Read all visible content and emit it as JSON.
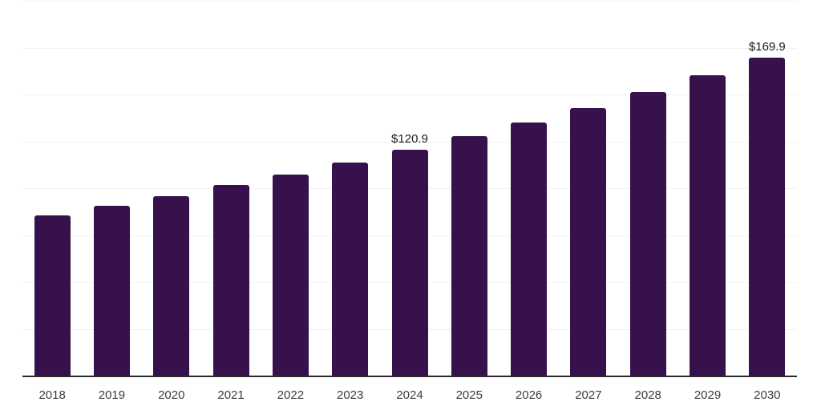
{
  "chart_data": {
    "type": "bar",
    "title": "",
    "xlabel": "",
    "ylabel": "",
    "categories": [
      "2018",
      "2019",
      "2020",
      "2021",
      "2022",
      "2023",
      "2024",
      "2025",
      "2026",
      "2027",
      "2028",
      "2029",
      "2030"
    ],
    "values": [
      86.0,
      91.0,
      96.3,
      102.0,
      107.9,
      114.2,
      120.9,
      128.0,
      135.4,
      143.3,
      151.7,
      160.5,
      169.9
    ],
    "data_labels": [
      "",
      "",
      "",
      "",
      "",
      "",
      "$120.9",
      "",
      "",
      "",
      "",
      "",
      "$169.9"
    ],
    "ylim": [
      0,
      200
    ],
    "gridline_step": 25,
    "grid": true,
    "legend": "none",
    "bar_color": "#36114B",
    "axis_line_color": "#2B2B2B",
    "gridline_color": "#F2F2F2",
    "tick_label_color": "#3C3C3C",
    "data_label_color": "#1A1A1A",
    "background_color": "#FFFFFF"
  }
}
